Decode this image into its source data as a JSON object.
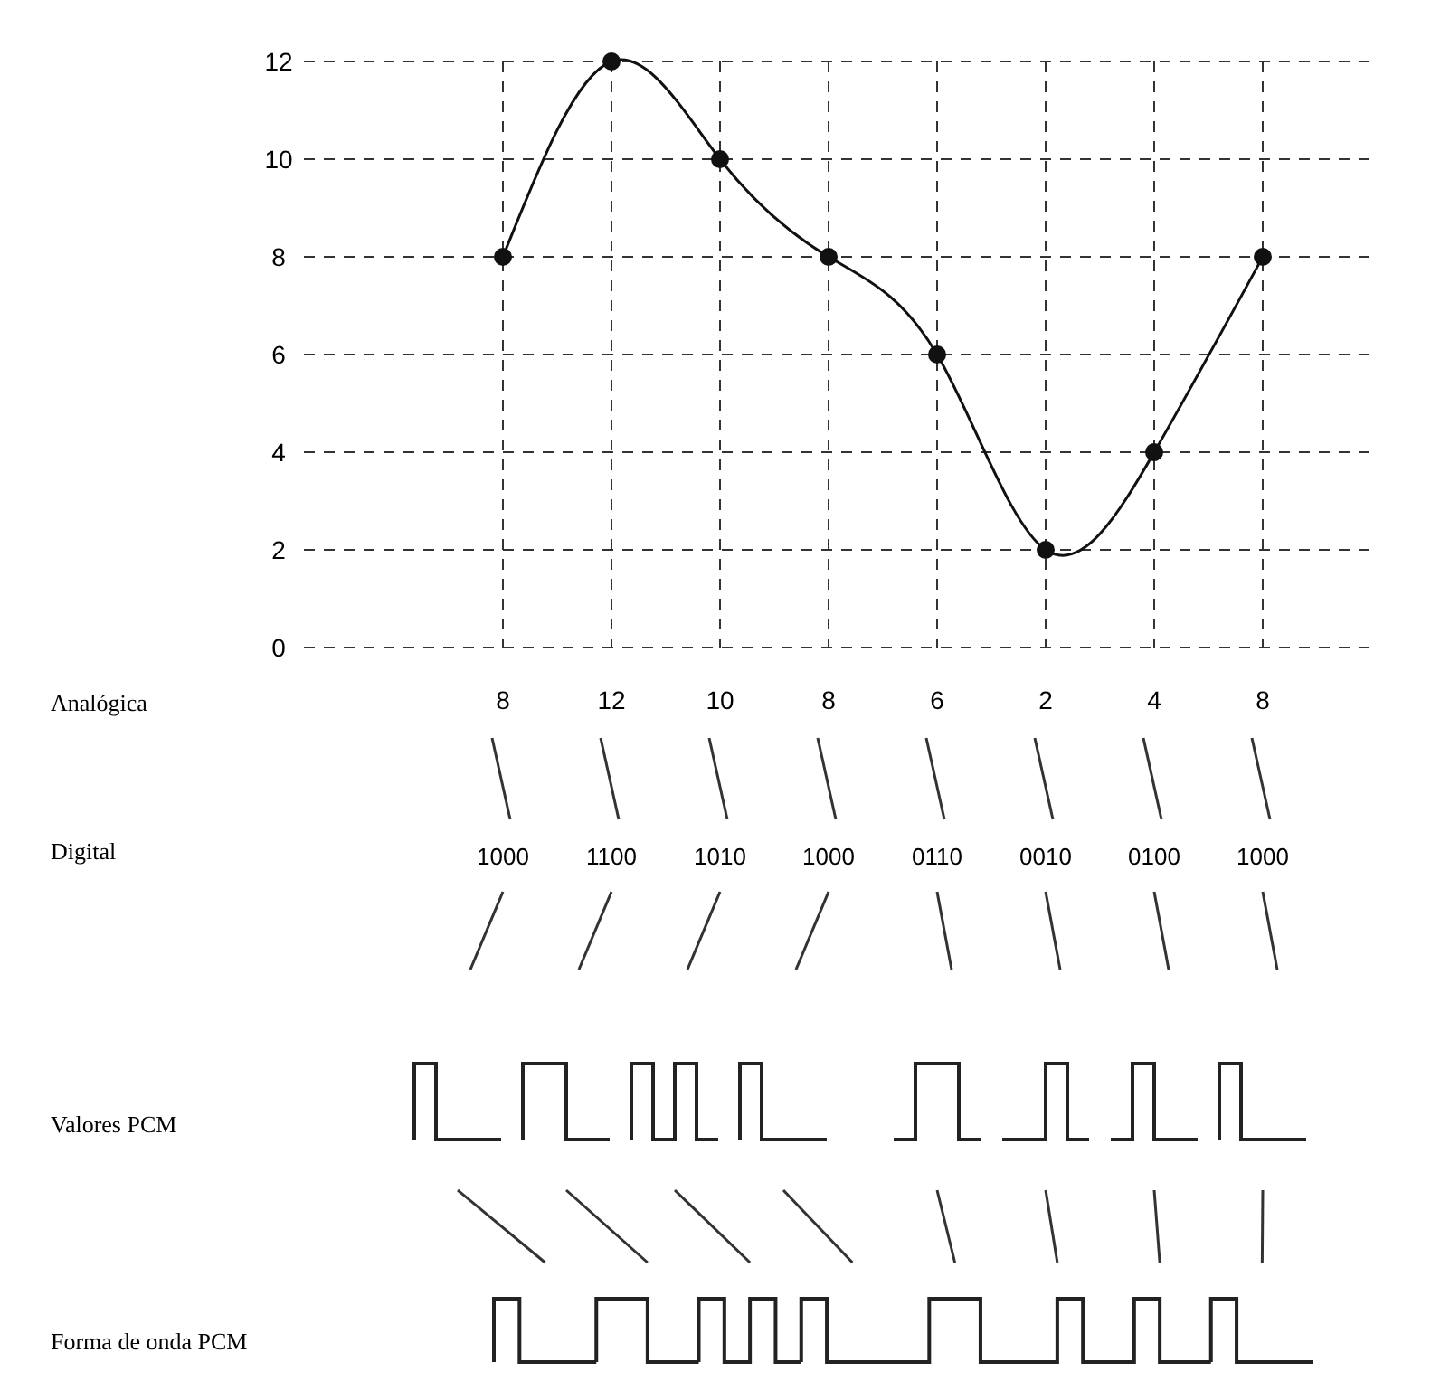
{
  "chart_data": {
    "type": "line",
    "categories": [
      "8",
      "12",
      "10",
      "8",
      "6",
      "2",
      "4",
      "8"
    ],
    "values": [
      8,
      12,
      10,
      8,
      6,
      2,
      4,
      8
    ],
    "color": "#111111",
    "marker": "circle",
    "grid": true,
    "line_style": "solid",
    "ylim": [
      0,
      12
    ],
    "yticks": [
      0,
      2,
      4,
      6,
      8,
      10,
      12
    ],
    "annotations": [
      "Analógica",
      "Digital",
      "Valores PCM",
      "Forma de onda PCM",
      "1000",
      "1100",
      "1010",
      "1000",
      "0110",
      "0010",
      "0100",
      "1000"
    ]
  }
}
